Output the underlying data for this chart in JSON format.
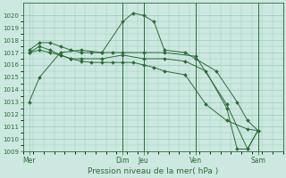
{
  "background_color": "#cce8e0",
  "grid_color": "#99ccbb",
  "line_color": "#2d6b3a",
  "title": "Pression niveau de la mer( hPa )",
  "ylim": [
    1009,
    1021
  ],
  "yticks": [
    1009,
    1010,
    1011,
    1012,
    1013,
    1014,
    1015,
    1016,
    1017,
    1018,
    1019,
    1020
  ],
  "day_labels": [
    "Mer",
    "Dim",
    "Jeu",
    "Ven",
    "Sam"
  ],
  "day_positions": [
    0,
    4.5,
    5.5,
    8.0,
    11.0
  ],
  "xlim": [
    -0.3,
    12.0
  ],
  "lines": [
    {
      "x": [
        0,
        0.5,
        1.5,
        2.5,
        3.5,
        4.5,
        5.0,
        5.5,
        6.0,
        6.5,
        7.5,
        8.0,
        9.0,
        10.0,
        10.5,
        11.0
      ],
      "y": [
        1013,
        1015,
        1017,
        1017.2,
        1017,
        1019.5,
        1020.2,
        1020.0,
        1019.5,
        1017.2,
        1017.0,
        1016.5,
        1015.5,
        1013.0,
        1011.5,
        1010.7
      ]
    },
    {
      "x": [
        0,
        0.5,
        1.0,
        1.5,
        2.0,
        2.5,
        3.0,
        3.5,
        4.0,
        4.5,
        5.5,
        6.5,
        8.0,
        9.5,
        10.5,
        11.0
      ],
      "y": [
        1017.2,
        1017.8,
        1017.8,
        1017.5,
        1017.2,
        1017.0,
        1017.0,
        1017.0,
        1017.0,
        1017.0,
        1017.0,
        1017.0,
        1016.7,
        1012.8,
        1009.2,
        1010.7
      ]
    },
    {
      "x": [
        0,
        0.5,
        1.0,
        1.5,
        2.0,
        2.5,
        3.0,
        3.5,
        4.0,
        4.5,
        5.0,
        5.5,
        6.0,
        6.5,
        7.5,
        8.5,
        9.5,
        10.5,
        11.0
      ],
      "y": [
        1017.0,
        1017.2,
        1017.0,
        1016.8,
        1016.5,
        1016.3,
        1016.2,
        1016.2,
        1016.2,
        1016.2,
        1016.2,
        1016.0,
        1015.8,
        1015.5,
        1015.2,
        1012.8,
        1011.5,
        1010.8,
        1010.7
      ]
    },
    {
      "x": [
        0,
        0.5,
        1.0,
        1.5,
        2.0,
        2.5,
        3.5,
        4.5,
        5.5,
        6.5,
        7.5,
        8.5,
        9.5,
        10.0,
        10.5,
        11.0
      ],
      "y": [
        1017.0,
        1017.5,
        1017.2,
        1016.8,
        1016.5,
        1016.5,
        1016.5,
        1016.8,
        1016.5,
        1016.5,
        1016.3,
        1015.5,
        1012.5,
        1009.2,
        1009.2,
        1010.7
      ]
    }
  ]
}
